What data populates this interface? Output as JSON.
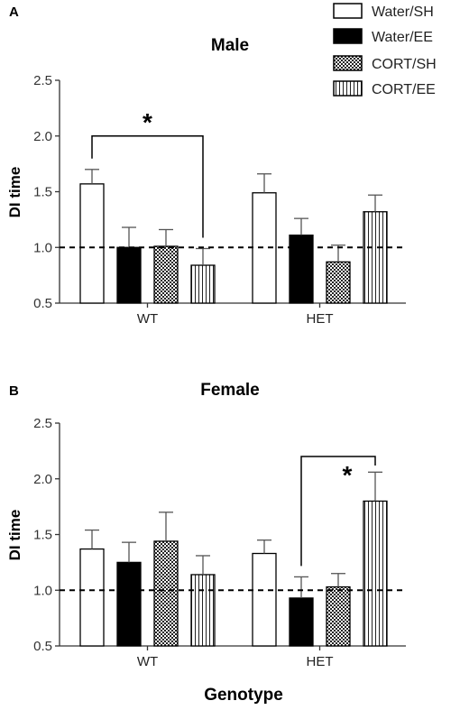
{
  "colors": {
    "axis": "#333333",
    "bar_outline": "#000000",
    "water_ee_fill": "#000000",
    "background": "#ffffff"
  },
  "legend": {
    "entries": [
      {
        "label": "Water/SH",
        "pattern": "white"
      },
      {
        "label": "Water/EE",
        "pattern": "black"
      },
      {
        "label": "CORT/SH",
        "pattern": "checker"
      },
      {
        "label": "CORT/EE",
        "pattern": "vstripes"
      }
    ]
  },
  "chart_data": [
    {
      "type": "bar",
      "panel_label": "A",
      "title": "Male",
      "ylabel": "DI time",
      "xlabel": "",
      "categories": [
        "WT",
        "HET"
      ],
      "ylim": [
        0.5,
        2.5
      ],
      "yticks": [
        "0.5",
        "1.0",
        "1.5",
        "2.0",
        "2.5"
      ],
      "reference_line": 1.0,
      "series": [
        {
          "name": "Water/SH",
          "values": [
            1.57,
            1.49
          ],
          "errors": [
            0.13,
            0.17
          ]
        },
        {
          "name": "Water/EE",
          "values": [
            1.0,
            1.11
          ],
          "errors": [
            0.18,
            0.15
          ]
        },
        {
          "name": "CORT/SH",
          "values": [
            1.01,
            0.87
          ],
          "errors": [
            0.15,
            0.15
          ]
        },
        {
          "name": "CORT/EE",
          "values": [
            0.84,
            1.32
          ],
          "errors": [
            0.15,
            0.15
          ]
        }
      ],
      "significance": {
        "label": "*",
        "category": "WT",
        "from_series": "Water/SH",
        "to_series": "CORT/EE",
        "y": 2.0
      }
    },
    {
      "type": "bar",
      "panel_label": "B",
      "title": "Female",
      "ylabel": "DI time",
      "xlabel": "Genotype",
      "categories": [
        "WT",
        "HET"
      ],
      "ylim": [
        0.5,
        2.5
      ],
      "yticks": [
        "0.5",
        "1.0",
        "1.5",
        "2.0",
        "2.5"
      ],
      "reference_line": 1.0,
      "series": [
        {
          "name": "Water/SH",
          "values": [
            1.37,
            1.33
          ],
          "errors": [
            0.17,
            0.12
          ]
        },
        {
          "name": "Water/EE",
          "values": [
            1.25,
            0.93
          ],
          "errors": [
            0.18,
            0.19
          ]
        },
        {
          "name": "CORT/SH",
          "values": [
            1.44,
            1.03
          ],
          "errors": [
            0.26,
            0.12
          ]
        },
        {
          "name": "CORT/EE",
          "values": [
            1.14,
            1.8
          ],
          "errors": [
            0.17,
            0.26
          ]
        }
      ],
      "significance": {
        "label": "*",
        "category": "HET",
        "from_series": "Water/EE",
        "to_series": "CORT/EE",
        "y": 2.2
      }
    }
  ]
}
